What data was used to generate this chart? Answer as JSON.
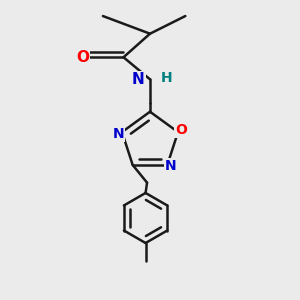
{
  "background_color": "#ebebeb",
  "bond_color": "#1a1a1a",
  "bond_width": 1.8,
  "atom_colors": {
    "O": "#ff0000",
    "N": "#0000cc",
    "H": "#008080",
    "C": "#1a1a1a"
  },
  "font_size_large": 11,
  "font_size_medium": 10,
  "figsize": [
    3.0,
    3.0
  ],
  "dpi": 100,
  "xlim": [
    0.0,
    1.0
  ],
  "ylim": [
    0.0,
    1.0
  ]
}
